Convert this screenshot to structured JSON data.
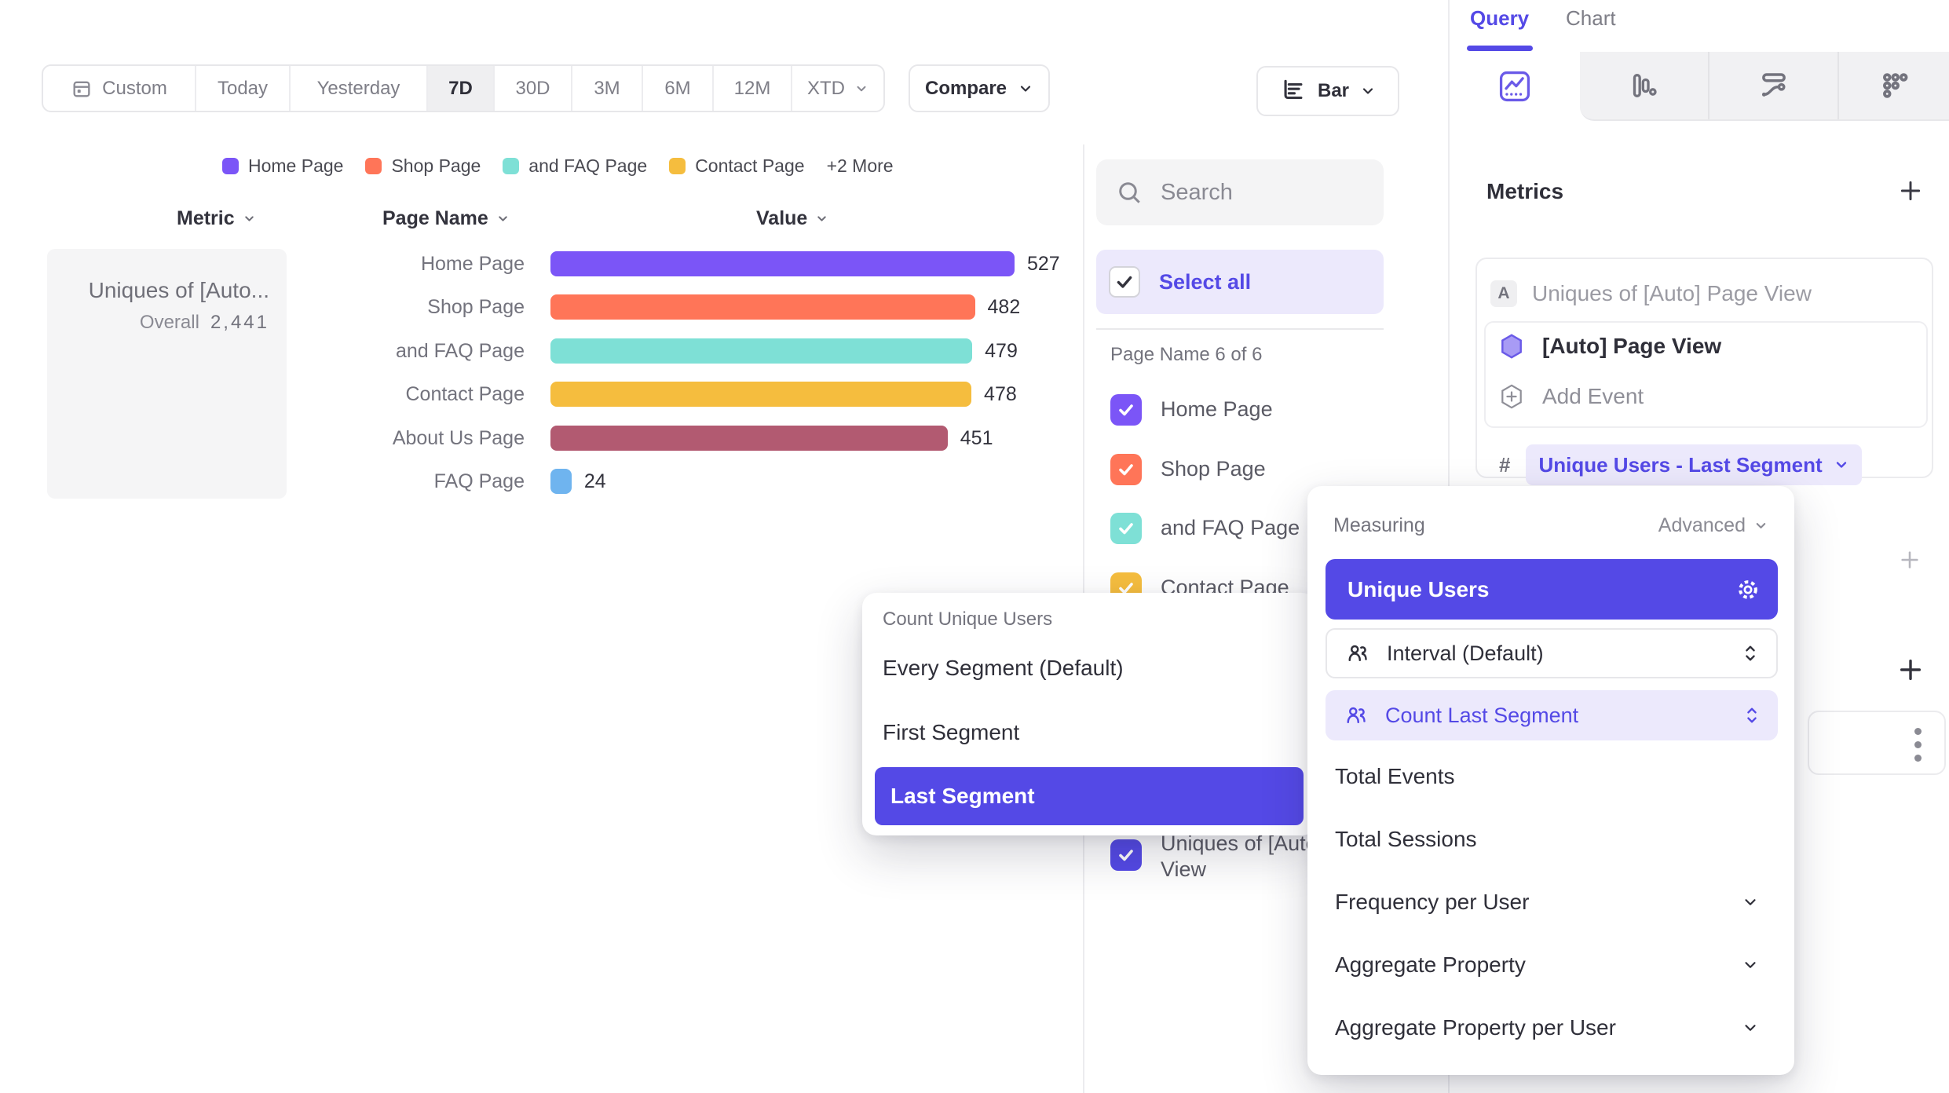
{
  "toolbar": {
    "date_ranges": [
      "Custom",
      "Today",
      "Yesterday",
      "7D",
      "30D",
      "3M",
      "6M",
      "12M",
      "XTD"
    ],
    "selected_range": "7D",
    "compare_label": "Compare",
    "chart_type": "Bar"
  },
  "legend": {
    "items": [
      {
        "label": "Home Page",
        "color": "#7B55F7"
      },
      {
        "label": "Shop Page",
        "color": "#FF7558"
      },
      {
        "label": "and FAQ Page",
        "color": "#7EE0D6"
      },
      {
        "label": "Contact Page",
        "color": "#F5BD3E"
      }
    ],
    "more_label": "+2 More"
  },
  "table_headers": {
    "metric": "Metric",
    "breakdown": "Page Name",
    "value": "Value"
  },
  "metric_card": {
    "title": "Uniques of [Auto...",
    "overall_label": "Overall",
    "overall_value": "2,441"
  },
  "chart_data": {
    "type": "bar",
    "orientation": "horizontal",
    "categories": [
      "Home Page",
      "Shop Page",
      "and FAQ Page",
      "Contact Page",
      "About Us Page",
      "FAQ Page"
    ],
    "values": [
      527,
      482,
      479,
      478,
      451,
      24
    ],
    "colors": [
      "#7B55F7",
      "#FF7558",
      "#7EE0D6",
      "#F5BD3E",
      "#B25A71",
      "#6FB4EF"
    ],
    "xlim": [
      0,
      527
    ],
    "series_name": "Uniques of [Auto] Page View",
    "overall_label": "Overall",
    "overall_value": 2441,
    "legend_position": "top",
    "grid": false
  },
  "filter_panel": {
    "search_placeholder": "Search",
    "select_all_label": "Select all",
    "group_label": "Page Name 6 of 6",
    "items": [
      {
        "label": "Home Page",
        "color": "#7B55F7",
        "checked": true
      },
      {
        "label": "Shop Page",
        "color": "#FF7558",
        "checked": true
      },
      {
        "label": "and FAQ Page",
        "color": "#7EE0D6",
        "checked": true
      },
      {
        "label": "Contact Page",
        "color": "#F5BD3E",
        "checked": true
      },
      {
        "label": "Uniques of [Auto] View",
        "color": "#5449E6",
        "checked": true
      }
    ]
  },
  "segment_popup": {
    "title": "Count Unique Users",
    "options": [
      {
        "label": "Every Segment (Default)",
        "selected": false
      },
      {
        "label": "First Segment",
        "selected": false
      },
      {
        "label": "Last Segment",
        "selected": true
      }
    ]
  },
  "measuring_popup": {
    "title": "Measuring",
    "advanced_label": "Advanced",
    "primary_option": "Unique Users",
    "interval_row": "Interval (Default)",
    "count_row": "Count Last Segment",
    "options": [
      "Total Events",
      "Total Sessions"
    ],
    "expandable_options": [
      "Frequency per User",
      "Aggregate Property",
      "Aggregate Property per User"
    ]
  },
  "sidebar": {
    "tabs": [
      {
        "label": "Query",
        "active": true
      },
      {
        "label": "Chart",
        "active": false
      }
    ],
    "metrics": {
      "header": "Metrics",
      "badge": "A",
      "metric_title": "Uniques of [Auto] Page View",
      "event_name": "[Auto] Page View",
      "add_event_label": "Add Event",
      "hash_symbol": "#",
      "measure_label": "Unique Users - Last Segment"
    }
  },
  "colors": {
    "accent": "#5449E6",
    "accent_light": "#ECE9FC"
  }
}
